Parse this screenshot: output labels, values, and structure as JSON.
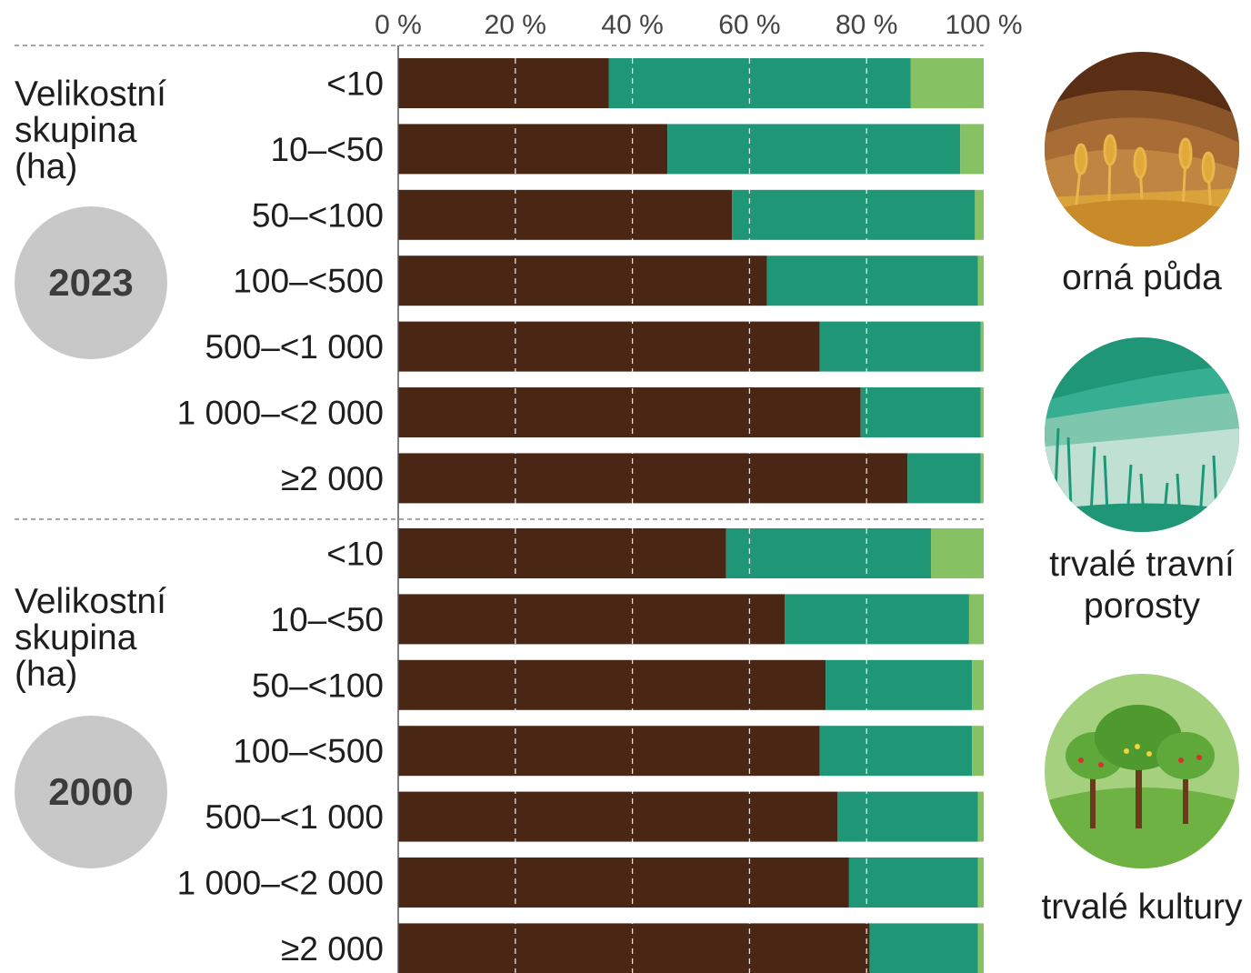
{
  "chart_data": {
    "type": "bar",
    "stacked": true,
    "orientation": "horizontal",
    "x_ticks": [
      "0 %",
      "20 %",
      "40 %",
      "60 %",
      "80 %",
      "100 %"
    ],
    "xlim": [
      0,
      100
    ],
    "grid": "vertical dashed",
    "series_colors": [
      "#4a2614",
      "#1f9675",
      "#86c263"
    ],
    "legend": [
      {
        "label": "orná půda",
        "icon": "wheat-field-icon"
      },
      {
        "label": "trvalé travní porosty",
        "icon": "grassland-icon"
      },
      {
        "label": "trvalé kultury",
        "icon": "orchard-icon"
      }
    ],
    "groups": [
      {
        "year": "2023",
        "label": "Velikostní skupina (ha)",
        "rows": [
          {
            "category": "<10",
            "values": [
              36.0,
              51.5,
              12.5
            ]
          },
          {
            "category": "10–<50",
            "values": [
              46.0,
              50.0,
              4.0
            ]
          },
          {
            "category": "50–<100",
            "values": [
              57.0,
              41.5,
              1.5
            ]
          },
          {
            "category": "100–<500",
            "values": [
              63.0,
              36.0,
              1.0
            ]
          },
          {
            "category": "500–<1 000",
            "values": [
              72.0,
              27.5,
              0.5
            ]
          },
          {
            "category": "1 000–<2 000",
            "values": [
              79.0,
              20.5,
              0.5
            ]
          },
          {
            "category": "≥2 000",
            "values": [
              87.0,
              12.5,
              0.5
            ]
          }
        ]
      },
      {
        "year": "2000",
        "label": "Velikostní skupina (ha)",
        "rows": [
          {
            "category": "<10",
            "values": [
              56.0,
              35.0,
              9.0
            ]
          },
          {
            "category": "10–<50",
            "values": [
              66.0,
              31.5,
              2.5
            ]
          },
          {
            "category": "50–<100",
            "values": [
              73.0,
              25.0,
              2.0
            ]
          },
          {
            "category": "100–<500",
            "values": [
              72.0,
              26.0,
              2.0
            ]
          },
          {
            "category": "500–<1 000",
            "values": [
              75.0,
              24.0,
              1.0
            ]
          },
          {
            "category": "1 000–<2 000",
            "values": [
              77.0,
              22.0,
              1.0
            ]
          },
          {
            "category": "≥2 000",
            "values": [
              80.5,
              18.5,
              1.0
            ]
          }
        ]
      }
    ]
  }
}
